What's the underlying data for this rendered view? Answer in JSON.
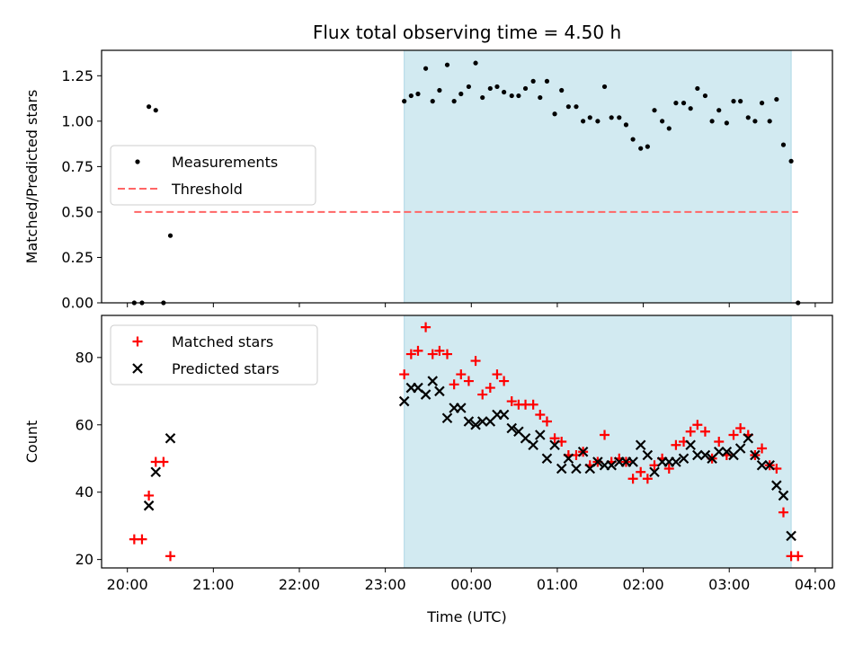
{
  "figure": {
    "title": "Flux total observing time = 4.50 h",
    "xlabel": "Time (UTC)",
    "x_tick_labels": [
      "20:00",
      "21:00",
      "22:00",
      "23:00",
      "00:00",
      "01:00",
      "02:00",
      "03:00",
      "04:00"
    ]
  },
  "chart_data": [
    {
      "type": "scatter",
      "title": "Flux total observing time = 4.50 h",
      "xlabel": "",
      "ylabel": "Matched/Predicted stars",
      "x_unit": "hours since 20:00 UTC",
      "x_ticks": [
        0,
        1,
        2,
        3,
        4,
        5,
        6,
        7,
        8
      ],
      "xlim": [
        -0.3,
        8.2
      ],
      "ylim": [
        0,
        1.39
      ],
      "y_ticks": [
        0,
        0.25,
        0.5,
        0.75,
        1.0,
        1.25
      ],
      "y_tick_labels": [
        "0.00",
        "0.25",
        "0.50",
        "0.75",
        "1.00",
        "1.25"
      ],
      "shaded_span": {
        "x": [
          3.22,
          7.72
        ],
        "color": "#add8e6"
      },
      "legend": {
        "position": "center-left",
        "entries": [
          "Measurements",
          "Threshold"
        ]
      },
      "series": [
        {
          "name": "Measurements",
          "marker": "dot",
          "color": "#000000",
          "points": [
            [
              0.08,
              0.0
            ],
            [
              0.17,
              0.0
            ],
            [
              0.25,
              1.08
            ],
            [
              0.33,
              1.06
            ],
            [
              0.42,
              0.0
            ],
            [
              0.5,
              0.37
            ],
            [
              3.22,
              1.11
            ],
            [
              3.3,
              1.14
            ],
            [
              3.38,
              1.15
            ],
            [
              3.47,
              1.29
            ],
            [
              3.55,
              1.11
            ],
            [
              3.63,
              1.17
            ],
            [
              3.72,
              1.31
            ],
            [
              3.8,
              1.11
            ],
            [
              3.88,
              1.15
            ],
            [
              3.97,
              1.19
            ],
            [
              4.05,
              1.32
            ],
            [
              4.13,
              1.13
            ],
            [
              4.22,
              1.18
            ],
            [
              4.3,
              1.19
            ],
            [
              4.38,
              1.16
            ],
            [
              4.47,
              1.14
            ],
            [
              4.55,
              1.14
            ],
            [
              4.63,
              1.18
            ],
            [
              4.72,
              1.22
            ],
            [
              4.8,
              1.13
            ],
            [
              4.88,
              1.22
            ],
            [
              4.97,
              1.04
            ],
            [
              5.05,
              1.17
            ],
            [
              5.13,
              1.08
            ],
            [
              5.22,
              1.08
            ],
            [
              5.3,
              1.0
            ],
            [
              5.38,
              1.02
            ],
            [
              5.47,
              1.0
            ],
            [
              5.55,
              1.19
            ],
            [
              5.63,
              1.02
            ],
            [
              5.72,
              1.02
            ],
            [
              5.8,
              0.98
            ],
            [
              5.88,
              0.9
            ],
            [
              5.97,
              0.85
            ],
            [
              6.05,
              0.86
            ],
            [
              6.13,
              1.06
            ],
            [
              6.22,
              1.0
            ],
            [
              6.3,
              0.96
            ],
            [
              6.38,
              1.1
            ],
            [
              6.47,
              1.1
            ],
            [
              6.55,
              1.07
            ],
            [
              6.63,
              1.18
            ],
            [
              6.72,
              1.14
            ],
            [
              6.8,
              1.0
            ],
            [
              6.88,
              1.06
            ],
            [
              6.97,
              0.99
            ],
            [
              7.05,
              1.11
            ],
            [
              7.13,
              1.11
            ],
            [
              7.22,
              1.02
            ],
            [
              7.3,
              1.0
            ],
            [
              7.38,
              1.1
            ],
            [
              7.47,
              1.0
            ],
            [
              7.55,
              1.12
            ],
            [
              7.63,
              0.87
            ],
            [
              7.72,
              0.78
            ],
            [
              7.8,
              0.0
            ]
          ]
        },
        {
          "name": "Threshold",
          "style": "dashed-line",
          "color": "#ff6666",
          "points": [
            [
              0.08,
              0.5
            ],
            [
              7.8,
              0.5
            ]
          ]
        }
      ]
    },
    {
      "type": "scatter",
      "title": "",
      "xlabel": "Time (UTC)",
      "ylabel": "Count",
      "x_unit": "hours since 20:00 UTC",
      "x_ticks": [
        0,
        1,
        2,
        3,
        4,
        5,
        6,
        7,
        8
      ],
      "x_tick_labels": [
        "20:00",
        "21:00",
        "22:00",
        "23:00",
        "00:00",
        "01:00",
        "02:00",
        "03:00",
        "04:00"
      ],
      "xlim": [
        -0.3,
        8.2
      ],
      "ylim": [
        17.5,
        92.5
      ],
      "y_ticks": [
        20,
        40,
        60,
        80
      ],
      "y_tick_labels": [
        "20",
        "40",
        "60",
        "80"
      ],
      "shaded_span": {
        "x": [
          3.22,
          7.72
        ],
        "color": "#add8e6"
      },
      "legend": {
        "position": "top-left",
        "entries": [
          "Matched stars",
          "Predicted stars"
        ]
      },
      "series": [
        {
          "name": "Matched stars",
          "marker": "plus",
          "color": "#ff0000",
          "points": [
            [
              0.08,
              26
            ],
            [
              0.17,
              26
            ],
            [
              0.25,
              39
            ],
            [
              0.33,
              49
            ],
            [
              0.42,
              49
            ],
            [
              0.5,
              21
            ],
            [
              3.22,
              75
            ],
            [
              3.3,
              81
            ],
            [
              3.38,
              82
            ],
            [
              3.47,
              89
            ],
            [
              3.55,
              81
            ],
            [
              3.63,
              82
            ],
            [
              3.72,
              81
            ],
            [
              3.8,
              72
            ],
            [
              3.88,
              75
            ],
            [
              3.97,
              73
            ],
            [
              4.05,
              79
            ],
            [
              4.13,
              69
            ],
            [
              4.22,
              71
            ],
            [
              4.3,
              75
            ],
            [
              4.38,
              73
            ],
            [
              4.47,
              67
            ],
            [
              4.55,
              66
            ],
            [
              4.63,
              66
            ],
            [
              4.72,
              66
            ],
            [
              4.8,
              63
            ],
            [
              4.88,
              61
            ],
            [
              4.97,
              56
            ],
            [
              5.05,
              55
            ],
            [
              5.13,
              51
            ],
            [
              5.22,
              51
            ],
            [
              5.3,
              52
            ],
            [
              5.38,
              48
            ],
            [
              5.47,
              49
            ],
            [
              5.55,
              57
            ],
            [
              5.63,
              49
            ],
            [
              5.72,
              50
            ],
            [
              5.8,
              49
            ],
            [
              5.88,
              44
            ],
            [
              5.97,
              46
            ],
            [
              6.05,
              44
            ],
            [
              6.13,
              48
            ],
            [
              6.22,
              50
            ],
            [
              6.3,
              47
            ],
            [
              6.38,
              54
            ],
            [
              6.47,
              55
            ],
            [
              6.55,
              58
            ],
            [
              6.63,
              60
            ],
            [
              6.72,
              58
            ],
            [
              6.8,
              50
            ],
            [
              6.88,
              55
            ],
            [
              6.97,
              51
            ],
            [
              7.05,
              57
            ],
            [
              7.13,
              59
            ],
            [
              7.22,
              57
            ],
            [
              7.3,
              51
            ],
            [
              7.38,
              53
            ],
            [
              7.47,
              48
            ],
            [
              7.55,
              47
            ],
            [
              7.63,
              34
            ],
            [
              7.72,
              21
            ],
            [
              7.8,
              21
            ]
          ]
        },
        {
          "name": "Predicted stars",
          "marker": "x",
          "color": "#000000",
          "points": [
            [
              0.25,
              36
            ],
            [
              0.33,
              46
            ],
            [
              0.5,
              56
            ],
            [
              3.22,
              67
            ],
            [
              3.3,
              71
            ],
            [
              3.38,
              71
            ],
            [
              3.47,
              69
            ],
            [
              3.55,
              73
            ],
            [
              3.63,
              70
            ],
            [
              3.72,
              62
            ],
            [
              3.8,
              65
            ],
            [
              3.88,
              65
            ],
            [
              3.97,
              61
            ],
            [
              4.05,
              60
            ],
            [
              4.13,
              61
            ],
            [
              4.22,
              61
            ],
            [
              4.3,
              63
            ],
            [
              4.38,
              63
            ],
            [
              4.47,
              59
            ],
            [
              4.55,
              58
            ],
            [
              4.63,
              56
            ],
            [
              4.72,
              54
            ],
            [
              4.8,
              57
            ],
            [
              4.88,
              50
            ],
            [
              4.97,
              54
            ],
            [
              5.05,
              47
            ],
            [
              5.13,
              50
            ],
            [
              5.22,
              47
            ],
            [
              5.3,
              52
            ],
            [
              5.38,
              47
            ],
            [
              5.47,
              49
            ],
            [
              5.55,
              48
            ],
            [
              5.63,
              48
            ],
            [
              5.72,
              49
            ],
            [
              5.8,
              49
            ],
            [
              5.88,
              49
            ],
            [
              5.97,
              54
            ],
            [
              6.05,
              51
            ],
            [
              6.13,
              46
            ],
            [
              6.22,
              49
            ],
            [
              6.3,
              49
            ],
            [
              6.38,
              49
            ],
            [
              6.47,
              50
            ],
            [
              6.55,
              54
            ],
            [
              6.63,
              51
            ],
            [
              6.72,
              51
            ],
            [
              6.8,
              50
            ],
            [
              6.88,
              52
            ],
            [
              6.97,
              52
            ],
            [
              7.05,
              51
            ],
            [
              7.13,
              53
            ],
            [
              7.22,
              56
            ],
            [
              7.3,
              51
            ],
            [
              7.38,
              48
            ],
            [
              7.47,
              48
            ],
            [
              7.55,
              42
            ],
            [
              7.63,
              39
            ],
            [
              7.72,
              27
            ]
          ]
        }
      ]
    }
  ]
}
